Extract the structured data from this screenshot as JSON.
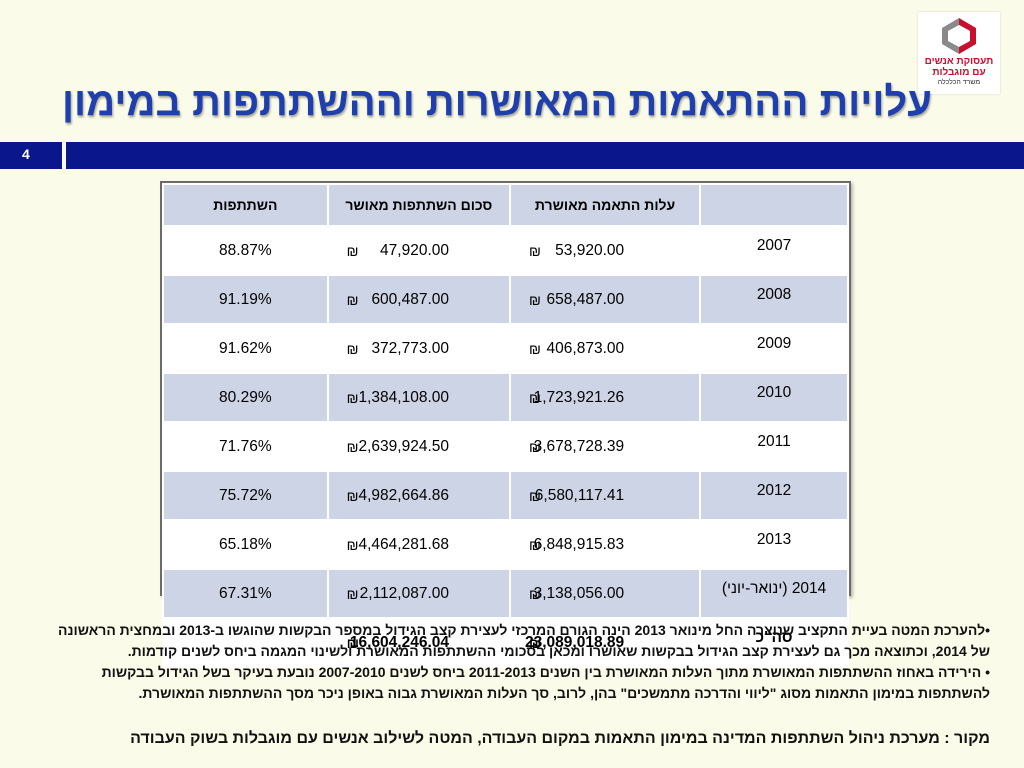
{
  "logo": {
    "line1": "תעסוקת אנשים",
    "line2": "עם מוגבלות",
    "line3": "משרד הכלכלה",
    "colors": {
      "red": "#c8102e",
      "grey": "#8a8a8a"
    }
  },
  "title": "עלויות ההתאמות המאושרות וההשתתפות במימון",
  "page_number": "4",
  "colors": {
    "title": "#1f3fae",
    "band": "#0a168c",
    "header_bg": "#cdd4e6",
    "background": "#fbfbe9"
  },
  "table": {
    "headers": {
      "year": "",
      "approved_cost": "עלות התאמה מאושרת",
      "approved_participation": "סכום השתתפות מאושר",
      "participation": "השתתפות"
    },
    "currency_symbol": "₪",
    "rows": [
      {
        "year": "2007",
        "approved_cost": "53,920.00",
        "approved_participation": "47,920.00",
        "participation": "88.87%"
      },
      {
        "year": "2008",
        "approved_cost": "658,487.00",
        "approved_participation": "600,487.00",
        "participation": "91.19%"
      },
      {
        "year": "2009",
        "approved_cost": "406,873.00",
        "approved_participation": "372,773.00",
        "participation": "91.62%"
      },
      {
        "year": "2010",
        "approved_cost": "1,723,921.26",
        "approved_participation": "1,384,108.00",
        "participation": "80.29%"
      },
      {
        "year": "2011",
        "approved_cost": "3,678,728.39",
        "approved_participation": "2,639,924.50",
        "participation": "71.76%"
      },
      {
        "year": "2012",
        "approved_cost": "6,580,117.41",
        "approved_participation": "4,982,664.86",
        "participation": "75.72%"
      },
      {
        "year": "2013",
        "approved_cost": "6,848,915.83",
        "approved_participation": "4,464,281.68",
        "participation": "65.18%"
      },
      {
        "year": "2014 (ינואר-יוני)",
        "approved_cost": "3,138,056.00",
        "approved_participation": "2,112,087.00",
        "participation": "67.31%"
      }
    ],
    "total": {
      "label": "סה\"כ",
      "approved_cost": "23,089,018.89",
      "approved_participation": "16,604,246.04",
      "participation": ""
    }
  },
  "notes": [
    "•להערכת המטה בעיית התקציב שנוצרה החל מינואר 2013 הינה הגורם המרכזי לעצירת קצב הגידול במספר הבקשות שהוגשו ב-2013 ובמחצית הראשונה של 2014, וכתוצאה מכך  גם לעצירת קצב הגידול בבקשות שאושרו ומכאן בסכומי ההשתתפות המאושרת ולשינוי המגמה ביחס לשנים קודמות.",
    "•  הירידה באחוז ההשתתפות המאושרת מתוך העלות המאושרת בין השנים 2011-2013 ביחס לשנים 2007-2010 נובעת בעיקר בשל הגידול בבקשות להשתתפות במימון התאמות מסוג \"ליווי והדרכה מתמשכים\" בהן, לרוב, סך העלות המאושרת גבוה באופן ניכר מסך ההשתתפות המאושרת."
  ],
  "source": "מקור : מערכת ניהול השתתפות המדינה במימון התאמות במקום העבודה, המטה לשילוב אנשים עם מוגבלות בשוק העבודה"
}
